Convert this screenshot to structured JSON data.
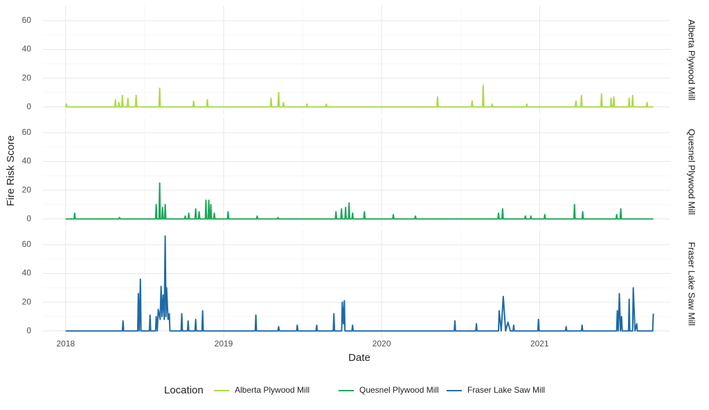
{
  "chart_data": {
    "type": "line",
    "facet_by": "series",
    "x_label": "Date",
    "y_label": "Fire Risk Score",
    "xlim": [
      2017.856,
      2021.827
    ],
    "xticks": [
      2018,
      2019,
      2020,
      2021
    ],
    "ylim": [
      -5,
      70.6
    ],
    "yticks": [
      0,
      20,
      40,
      60
    ],
    "grid": true,
    "minor_grid": true,
    "legend": "bottom",
    "legend_title": "Location",
    "series": [
      {
        "name": "Alberta Plywood Mill",
        "color": "#add94a",
        "x": [
          2018.0,
          2018.004,
          2018.008,
          2018.311,
          2018.315,
          2018.319,
          2018.333,
          2018.337,
          2018.341,
          2018.355,
          2018.359,
          2018.363,
          2018.39,
          2018.394,
          2018.398,
          2018.442,
          2018.446,
          2018.45,
          2018.591,
          2018.595,
          2018.599,
          2018.806,
          2018.81,
          2018.814,
          2018.893,
          2018.897,
          2018.901,
          2019.296,
          2019.3,
          2019.304,
          2019.344,
          2019.348,
          2019.352,
          2019.375,
          2019.379,
          2019.383,
          2019.523,
          2019.527,
          2019.531,
          2019.646,
          2019.65,
          2019.654,
          2020.35,
          2020.354,
          2020.358,
          2020.569,
          2020.573,
          2020.577,
          2020.639,
          2020.643,
          2020.647,
          2020.696,
          2020.7,
          2020.704,
          2020.915,
          2020.919,
          2020.923,
          2021.226,
          2021.23,
          2021.234,
          2021.261,
          2021.265,
          2021.269,
          2021.388,
          2021.392,
          2021.396,
          2021.449,
          2021.453,
          2021.457,
          2021.466,
          2021.47,
          2021.474,
          2021.563,
          2021.567,
          2021.571,
          2021.585,
          2021.589,
          2021.593,
          2021.676,
          2021.68,
          2021.684,
          2021.72
        ],
        "values": [
          0,
          2,
          0,
          0,
          5,
          0,
          0,
          3,
          0,
          0,
          8,
          0,
          0,
          6,
          0,
          0,
          8,
          0,
          0,
          13,
          0,
          0,
          4,
          0,
          0,
          5,
          0,
          0,
          6,
          0,
          0,
          10,
          0,
          0,
          3,
          0,
          0,
          2,
          0,
          0,
          2,
          0,
          0,
          7,
          0,
          0,
          4,
          0,
          0,
          15,
          0,
          0,
          2,
          0,
          0,
          2,
          0,
          0,
          4,
          0,
          0,
          8,
          0,
          0,
          9,
          0,
          0,
          6,
          0,
          0,
          7,
          0,
          0,
          6,
          0,
          0,
          8,
          0,
          0,
          3,
          0,
          0
        ]
      },
      {
        "name": "Quesnel Plywood Mill",
        "color": "#20a65b",
        "x": [
          2018.0,
          2018.053,
          2018.057,
          2018.061,
          2018.337,
          2018.341,
          2018.345,
          2018.569,
          2018.573,
          2018.577,
          2018.591,
          2018.595,
          2018.599,
          2018.609,
          2018.613,
          2018.617,
          2018.626,
          2018.63,
          2018.634,
          2018.753,
          2018.757,
          2018.761,
          2018.775,
          2018.779,
          2018.783,
          2018.819,
          2018.823,
          2018.827,
          2018.841,
          2018.845,
          2018.849,
          2018.884,
          2018.888,
          2018.892,
          2018.902,
          2018.906,
          2018.91,
          2018.915,
          2018.919,
          2018.923,
          2018.937,
          2018.941,
          2018.945,
          2019.024,
          2019.028,
          2019.032,
          2019.208,
          2019.212,
          2019.216,
          2019.34,
          2019.344,
          2019.348,
          2019.707,
          2019.711,
          2019.715,
          2019.742,
          2019.746,
          2019.75,
          2019.768,
          2019.772,
          2019.776,
          2019.79,
          2019.794,
          2019.798,
          2019.812,
          2019.816,
          2019.82,
          2019.887,
          2019.891,
          2019.895,
          2020.07,
          2020.074,
          2020.078,
          2020.21,
          2020.214,
          2020.218,
          2020.736,
          2020.74,
          2020.744,
          2020.762,
          2020.766,
          2020.77,
          2020.906,
          2020.91,
          2020.914,
          2020.941,
          2020.945,
          2020.949,
          2021.029,
          2021.033,
          2021.037,
          2021.217,
          2021.221,
          2021.225,
          2021.269,
          2021.273,
          2021.277,
          2021.484,
          2021.488,
          2021.492,
          2021.51,
          2021.514,
          2021.518,
          2021.72
        ],
        "values": [
          0,
          0,
          4,
          0,
          0,
          1,
          0,
          0,
          10,
          0,
          0,
          25,
          0,
          0,
          8,
          0,
          0,
          10,
          0,
          0,
          2,
          0,
          0,
          4,
          0,
          0,
          7,
          0,
          0,
          5,
          0,
          0,
          13,
          0,
          0,
          13,
          0,
          0,
          10,
          0,
          0,
          4,
          0,
          0,
          5,
          0,
          0,
          2,
          0,
          0,
          1,
          0,
          0,
          5,
          0,
          0,
          7,
          0,
          0,
          8,
          0,
          0,
          11,
          0,
          0,
          4,
          0,
          0,
          5,
          0,
          0,
          3,
          0,
          0,
          2,
          0,
          0,
          4,
          0,
          0,
          7,
          0,
          0,
          2,
          0,
          0,
          2,
          0,
          0,
          3,
          0,
          0,
          10,
          0,
          0,
          5,
          0,
          0,
          3,
          0,
          0,
          7,
          0,
          0
        ]
      },
      {
        "name": "Fraser Lake Saw Mill",
        "color": "#1f6aa5",
        "x": [
          2018.0,
          2018.359,
          2018.363,
          2018.367,
          2018.456,
          2018.46,
          2018.466,
          2018.473,
          2018.477,
          2018.53,
          2018.534,
          2018.538,
          2018.569,
          2018.573,
          2018.58,
          2018.586,
          2018.598,
          2018.604,
          2018.61,
          2018.617,
          2018.624,
          2018.63,
          2018.635,
          2018.639,
          2018.648,
          2018.656,
          2018.66,
          2018.731,
          2018.735,
          2018.739,
          2018.771,
          2018.775,
          2018.779,
          2018.819,
          2018.823,
          2018.827,
          2018.863,
          2018.867,
          2018.871,
          2019.2,
          2019.204,
          2019.208,
          2019.344,
          2019.348,
          2019.352,
          2019.462,
          2019.466,
          2019.47,
          2019.585,
          2019.589,
          2019.593,
          2019.694,
          2019.698,
          2019.702,
          2019.747,
          2019.751,
          2019.758,
          2019.764,
          2019.768,
          2019.812,
          2019.816,
          2019.82,
          2020.46,
          2020.464,
          2020.468,
          2020.596,
          2020.6,
          2020.604,
          2020.74,
          2020.744,
          2020.757,
          2020.77,
          2020.785,
          2020.8,
          2020.815,
          2020.832,
          2020.836,
          2020.84,
          2020.989,
          2020.993,
          2020.997,
          2021.164,
          2021.168,
          2021.172,
          2021.265,
          2021.269,
          2021.273,
          2021.488,
          2021.492,
          2021.498,
          2021.505,
          2021.512,
          2021.519,
          2021.523,
          2021.563,
          2021.567,
          2021.571,
          2021.589,
          2021.593,
          2021.604,
          2021.615,
          2021.619,
          2021.716,
          2021.72
        ],
        "values": [
          0,
          0,
          7,
          0,
          0,
          26,
          0,
          36,
          0,
          0,
          11,
          0,
          0,
          10,
          0,
          15,
          8,
          31,
          10,
          25,
          8,
          66,
          10,
          30,
          8,
          12,
          0,
          0,
          12,
          0,
          0,
          7,
          0,
          0,
          8,
          0,
          0,
          14,
          0,
          0,
          11,
          0,
          0,
          3,
          0,
          0,
          4,
          0,
          0,
          4,
          0,
          0,
          12,
          0,
          0,
          20,
          5,
          21,
          0,
          0,
          4,
          0,
          0,
          7,
          0,
          0,
          5,
          0,
          0,
          14,
          0,
          24,
          0,
          6,
          0,
          0,
          4,
          0,
          0,
          8,
          0,
          0,
          3,
          0,
          0,
          4,
          0,
          0,
          14,
          0,
          26,
          0,
          10,
          0,
          0,
          22,
          0,
          0,
          30,
          0,
          5,
          0,
          0,
          12
        ]
      }
    ]
  }
}
